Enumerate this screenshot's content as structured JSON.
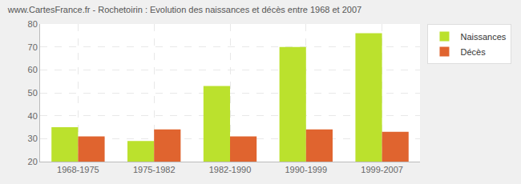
{
  "chart_data": {
    "type": "bar",
    "title": "www.CartesFrance.fr - Rochetoirin : Evolution des naissances et décès entre 1968 et 2007",
    "categories": [
      "1968-1975",
      "1975-1982",
      "1982-1990",
      "1990-1999",
      "1999-2007"
    ],
    "series": [
      {
        "name": "Naissances",
        "color": "#bbe12d",
        "values": [
          35,
          29,
          53,
          70,
          76
        ]
      },
      {
        "name": "Décès",
        "color": "#e0642f",
        "values": [
          31,
          34,
          31,
          34,
          33
        ]
      }
    ],
    "ylim": [
      20,
      80
    ],
    "yticks": [
      20,
      30,
      40,
      50,
      60,
      70,
      80
    ],
    "grid": true,
    "legend": "top right"
  }
}
